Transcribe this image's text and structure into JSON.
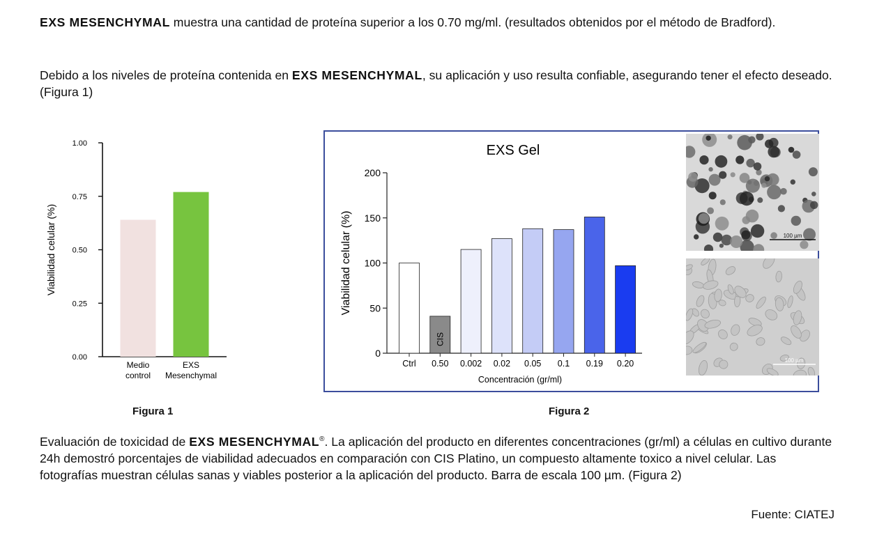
{
  "intro": {
    "p1_brand": "EXS MESENCHYMAL",
    "p1_text": " muestra una cantidad de proteína superior a los 0.70 mg/ml. (resultados obtenidos por el método de Bradford).",
    "p2_text_a": "Debido a los niveles de proteína contenida en ",
    "p2_brand": "EXS MESENCHYMAL",
    "p2_text_b": ", su aplicación y uso resulta confiable, asegurando tener el efecto deseado.(Figura 1)"
  },
  "figure1": {
    "caption": "Figura 1",
    "chart_data": {
      "type": "bar",
      "ylabel": "Viabilidad celular (%)",
      "ylim": [
        0,
        1.0
      ],
      "yticks": [
        "0.00",
        "0.25",
        "0.50",
        "0.75",
        "1.00"
      ],
      "categories": [
        [
          "Medio",
          "control"
        ],
        [
          "EXS",
          "Mesenchymal"
        ]
      ],
      "values": [
        0.64,
        0.77
      ],
      "colors": [
        "#f1e1e0",
        "#77c43f"
      ]
    }
  },
  "figure2": {
    "caption": "Figura 2",
    "chart_data": {
      "type": "bar",
      "title": "EXS Gel",
      "xlabel": "Concentración (gr/ml)",
      "ylabel": "Viabilidad celular (%)",
      "ylim": [
        0,
        200
      ],
      "yticks": [
        "0",
        "50",
        "100",
        "150",
        "200"
      ],
      "categories": [
        "Ctrl",
        "0.50",
        "0.002",
        "0.02",
        "0.05",
        "0.1",
        "0.19",
        "0.20"
      ],
      "values": [
        100,
        41,
        115,
        127,
        138,
        137,
        151,
        97
      ],
      "colors": [
        "#ffffff",
        "#8a8a8a",
        "#eef0fc",
        "#dde2fa",
        "#c4ccf6",
        "#96a6f0",
        "#4a64ea",
        "#1a3cf0"
      ],
      "bar_annotation": "CIS",
      "photo_scale_label": "100 µm"
    }
  },
  "conclusion": {
    "text_a": "Evaluación de toxicidad de ",
    "brand": "EXS MESENCHYMAL",
    "reg": "®",
    "text_b": ". La aplicación del producto en diferentes concentraciones (gr/ml) a células en cultivo durante 24h demostró porcentajes de viabilidad adecuados en comparación con CIS Platino, un compuesto altamente toxico a nivel celular. Las fotografías muestran células sanas y viables posterior a la aplicación del producto. Barra de escala 100 µm. (Figura 2)"
  },
  "source": "Fuente: CIATEJ"
}
